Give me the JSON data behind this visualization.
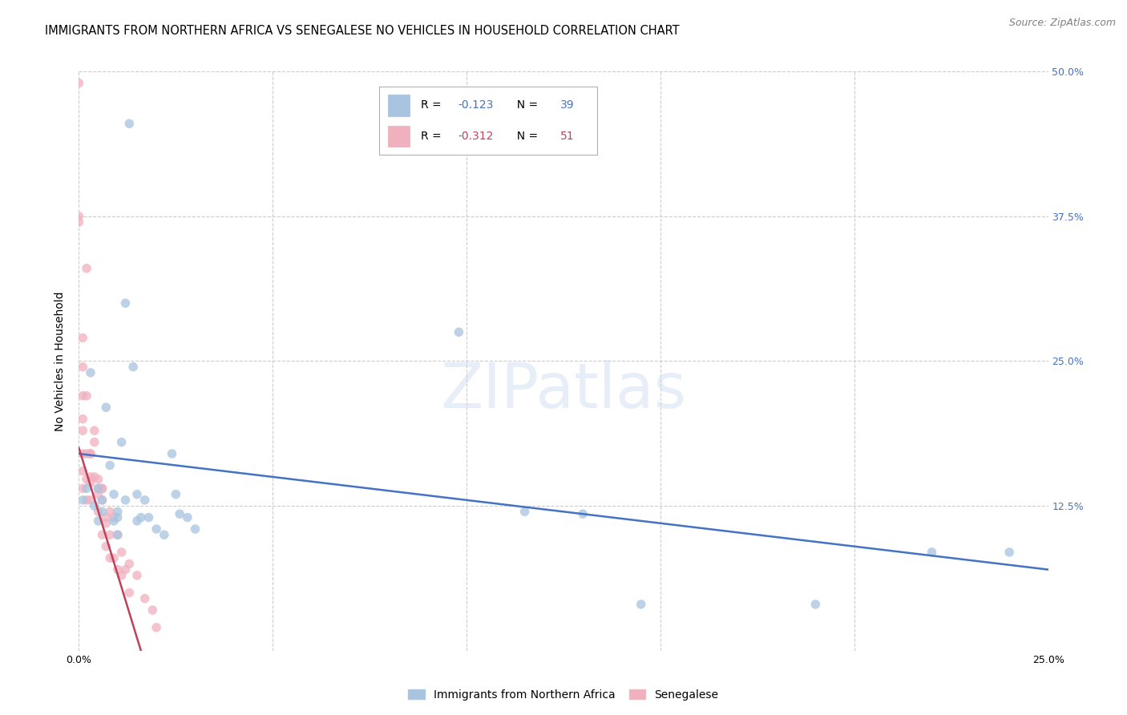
{
  "title": "IMMIGRANTS FROM NORTHERN AFRICA VS SENEGALESE NO VEHICLES IN HOUSEHOLD CORRELATION CHART",
  "source": "Source: ZipAtlas.com",
  "ylabel": "No Vehicles in Household",
  "xlim": [
    0.0,
    0.25
  ],
  "ylim": [
    0.0,
    0.5
  ],
  "xticks": [
    0.0,
    0.05,
    0.1,
    0.15,
    0.2,
    0.25
  ],
  "yticks": [
    0.0,
    0.125,
    0.25,
    0.375,
    0.5
  ],
  "blue_R": -0.123,
  "blue_N": 39,
  "pink_R": -0.312,
  "pink_N": 51,
  "blue_scatter_color": "#a8c4e0",
  "pink_scatter_color": "#f0b0be",
  "blue_line_color": "#4472c4",
  "pink_line_color": "#c0405a",
  "scatter_alpha": 0.75,
  "scatter_size": 70,
  "blue_x": [
    0.001,
    0.002,
    0.003,
    0.004,
    0.005,
    0.005,
    0.006,
    0.006,
    0.007,
    0.008,
    0.009,
    0.009,
    0.01,
    0.01,
    0.01,
    0.011,
    0.012,
    0.012,
    0.013,
    0.014,
    0.015,
    0.015,
    0.016,
    0.017,
    0.018,
    0.02,
    0.022,
    0.024,
    0.025,
    0.026,
    0.028,
    0.03,
    0.098,
    0.115,
    0.13,
    0.145,
    0.19,
    0.22,
    0.24
  ],
  "blue_y": [
    0.13,
    0.14,
    0.24,
    0.125,
    0.112,
    0.14,
    0.13,
    0.12,
    0.21,
    0.16,
    0.135,
    0.112,
    0.12,
    0.115,
    0.1,
    0.18,
    0.3,
    0.13,
    0.455,
    0.245,
    0.135,
    0.112,
    0.115,
    0.13,
    0.115,
    0.105,
    0.1,
    0.17,
    0.135,
    0.118,
    0.115,
    0.105,
    0.275,
    0.12,
    0.118,
    0.04,
    0.04,
    0.085,
    0.085
  ],
  "pink_x": [
    0.0,
    0.0,
    0.0,
    0.001,
    0.001,
    0.001,
    0.001,
    0.001,
    0.001,
    0.001,
    0.001,
    0.002,
    0.002,
    0.002,
    0.002,
    0.002,
    0.003,
    0.003,
    0.003,
    0.003,
    0.003,
    0.004,
    0.004,
    0.004,
    0.005,
    0.005,
    0.005,
    0.005,
    0.006,
    0.006,
    0.006,
    0.006,
    0.007,
    0.007,
    0.007,
    0.008,
    0.008,
    0.008,
    0.009,
    0.009,
    0.01,
    0.01,
    0.011,
    0.011,
    0.012,
    0.013,
    0.013,
    0.015,
    0.017,
    0.019,
    0.02
  ],
  "pink_y": [
    0.49,
    0.375,
    0.37,
    0.245,
    0.27,
    0.22,
    0.2,
    0.19,
    0.17,
    0.155,
    0.14,
    0.33,
    0.22,
    0.17,
    0.148,
    0.13,
    0.17,
    0.17,
    0.15,
    0.145,
    0.13,
    0.19,
    0.18,
    0.15,
    0.148,
    0.14,
    0.135,
    0.12,
    0.14,
    0.14,
    0.13,
    0.1,
    0.115,
    0.11,
    0.09,
    0.12,
    0.1,
    0.08,
    0.115,
    0.08,
    0.1,
    0.07,
    0.085,
    0.065,
    0.07,
    0.075,
    0.05,
    0.065,
    0.045,
    0.035,
    0.02
  ],
  "blue_trendline_x": [
    0.0,
    0.25
  ],
  "blue_trendline_y": [
    0.17,
    0.07
  ],
  "pink_trendline_x": [
    0.0,
    0.016
  ],
  "pink_trendline_y": [
    0.175,
    0.0
  ],
  "watermark": "ZIPatlas",
  "background_color": "#ffffff",
  "grid_color": "#cccccc",
  "title_fontsize": 10.5,
  "axis_label_fontsize": 10,
  "tick_fontsize": 9,
  "source_fontsize": 9
}
